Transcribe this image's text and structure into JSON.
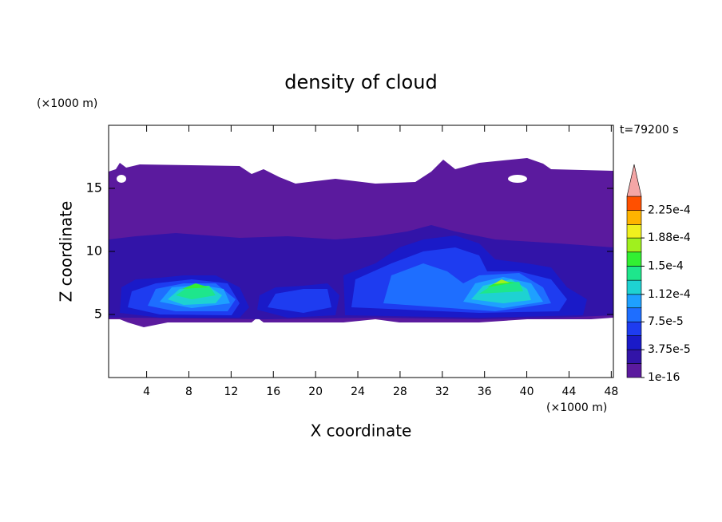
{
  "chart_data": {
    "type": "contour",
    "title": "density of cloud",
    "xlabel": "X coordinate",
    "ylabel": "Z coordinate",
    "x_unit": "(×1000 m)",
    "y_unit": "(×1000 m)",
    "annotation": "t=79200 s",
    "xlim": [
      0.4,
      48.2
    ],
    "ylim": [
      0,
      20
    ],
    "xticks": [
      4,
      8,
      12,
      16,
      20,
      24,
      28,
      32,
      36,
      40,
      44,
      48
    ],
    "yticks": [
      5,
      10,
      15
    ],
    "colorbar": {
      "levels": [
        1e-16,
        1.88e-05,
        3.75e-05,
        5.63e-05,
        7.5e-05,
        9.38e-05,
        0.000112,
        0.000131,
        0.00015,
        0.000169,
        0.000188,
        0.000206,
        0.000225,
        0.000244
      ],
      "colors": [
        "#5b1a9e",
        "#3214a8",
        "#1a1ac8",
        "#1e3cf0",
        "#1e6eff",
        "#1ea0ff",
        "#1ed2d2",
        "#1ee68c",
        "#32f032",
        "#a0f01e",
        "#f0f01e",
        "#ffb400",
        "#ff5000"
      ],
      "over_color": "#f4a6a6",
      "ticks": [
        1e-16,
        {
          "value": 3.75e-05,
          "label": "3.75e-5"
        },
        {
          "value": 7.5e-05,
          "label": "7.5e-5"
        },
        {
          "value": 0.000112,
          "label": "1.12e-4"
        },
        {
          "value": 0.00015,
          "label": "1.5e-4"
        },
        {
          "value": 0.000188,
          "label": "1.88e-4"
        },
        {
          "value": 0.000225,
          "label": "2.25e-4"
        }
      ]
    }
  }
}
